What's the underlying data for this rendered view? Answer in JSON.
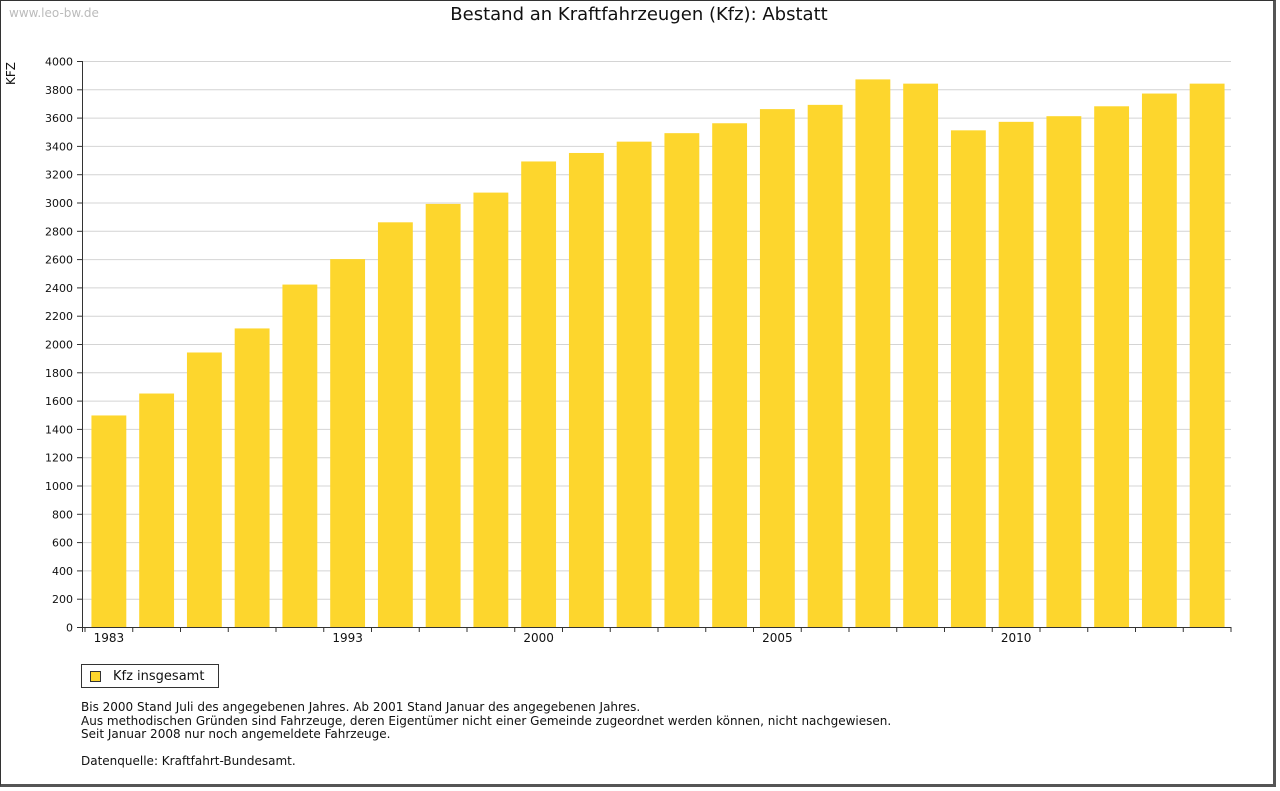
{
  "watermark": "www.leo-bw.de",
  "colors": {
    "bar": "#FDD62D",
    "grid": "#d4d4d4",
    "axis": "#333333"
  },
  "legend": {
    "label": "Kfz insgesamt",
    "icon": "legend-square-icon"
  },
  "notes": {
    "line1": "Bis 2000 Stand Juli des angegebenen Jahres. Ab 2001 Stand Januar des angegebenen Jahres.",
    "line2": "Aus methodischen Gründen sind Fahrzeuge, deren Eigentümer nicht einer Gemeinde zugeordnet werden können, nicht nachgewiesen.",
    "line3": "Seit Januar 2008 nur noch angemeldete Fahrzeuge.",
    "source": "Datenquelle: Kraftfahrt-Bundesamt."
  },
  "chart_data": {
    "type": "bar",
    "title": "Bestand an Kraftfahrzeugen (Kfz): Abstatt",
    "xlabel": "",
    "ylabel": "KFZ",
    "ylim": [
      0,
      4000
    ],
    "ytick_step": 200,
    "grid": true,
    "legend_position": "bottom-left",
    "categories": [
      "1983",
      "1985",
      "1987",
      "1989",
      "1991",
      "1993",
      "1995",
      "1997",
      "1999",
      "2000",
      "2001",
      "2002",
      "2003",
      "2004",
      "2005",
      "2006",
      "2007",
      "2008",
      "2009",
      "2010",
      "2011",
      "2012",
      "2013",
      "2014"
    ],
    "x_tick_labels": [
      "1983",
      "",
      "",
      "",
      "",
      "1993",
      "",
      "",
      "",
      "2000",
      "",
      "",
      "",
      "",
      "2005",
      "",
      "",
      "",
      "",
      "2010",
      "",
      "",
      "",
      ""
    ],
    "series": [
      {
        "name": "Kfz insgesamt",
        "values": [
          1495,
          1650,
          1940,
          2110,
          2420,
          2600,
          2860,
          2990,
          3070,
          3290,
          3350,
          3430,
          3490,
          3560,
          3660,
          3690,
          3870,
          3840,
          3510,
          3570,
          3610,
          3680,
          3770,
          3840
        ]
      }
    ]
  }
}
